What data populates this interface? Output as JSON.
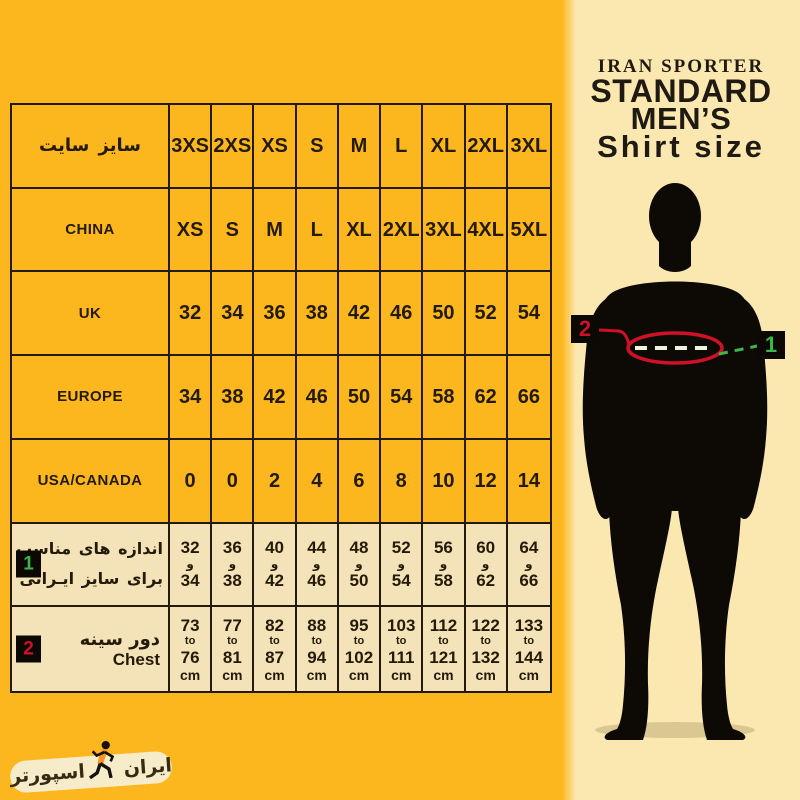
{
  "header": {
    "brand": "IRAN SPORTER",
    "title_line1": "STANDARD",
    "title_line2": "MEN’S",
    "title_line3": "Shirt size"
  },
  "figure": {
    "chest_marker": "2",
    "size_marker": "1"
  },
  "logo": {
    "word_iran": "ایران",
    "word_sporter": "اسپورتر"
  },
  "colors": {
    "background_yellow": "#fcb71e",
    "panel_cream": "#fbe8b1",
    "row_cream": "#f4e3b8",
    "badge_green": "#3db54d",
    "badge_red": "#cf1126",
    "line_red": "#cf1126",
    "ink": "#241a08"
  },
  "table": {
    "rows": [
      {
        "label": "سایز سایت",
        "label_lang": "fa",
        "cream": false,
        "values": [
          "3XS",
          "2XS",
          "XS",
          "S",
          "M",
          "L",
          "XL",
          "2XL",
          "3XL"
        ]
      },
      {
        "label": "CHINA",
        "label_lang": "en",
        "cream": false,
        "values": [
          "XS",
          "S",
          "M",
          "L",
          "XL",
          "2XL",
          "3XL",
          "4XL",
          "5XL"
        ]
      },
      {
        "label": "UK",
        "label_lang": "en",
        "cream": false,
        "values": [
          "32",
          "34",
          "36",
          "38",
          "42",
          "46",
          "50",
          "52",
          "54"
        ]
      },
      {
        "label": "EUROPE",
        "label_lang": "en",
        "cream": false,
        "values": [
          "34",
          "38",
          "42",
          "46",
          "50",
          "54",
          "58",
          "62",
          "66"
        ]
      },
      {
        "label": "USA/CANADA",
        "label_lang": "en",
        "cream": false,
        "values": [
          "0",
          "0",
          "2",
          "4",
          "6",
          "8",
          "10",
          "12",
          "14"
        ]
      },
      {
        "label": "اندازه های مناسب",
        "label2": "برای سایز ایـرانی",
        "label_lang": "fa",
        "label2_lang": "fa",
        "badge": "1",
        "badge_color": "green",
        "cream": true,
        "values": [
          {
            "a": "32",
            "w": "و",
            "b": "34"
          },
          {
            "a": "36",
            "w": "و",
            "b": "38"
          },
          {
            "a": "40",
            "w": "و",
            "b": "42"
          },
          {
            "a": "44",
            "w": "و",
            "b": "46"
          },
          {
            "a": "48",
            "w": "و",
            "b": "50"
          },
          {
            "a": "52",
            "w": "و",
            "b": "54"
          },
          {
            "a": "56",
            "w": "و",
            "b": "58"
          },
          {
            "a": "60",
            "w": "و",
            "b": "62"
          },
          {
            "a": "64",
            "w": "و",
            "b": "66"
          }
        ]
      },
      {
        "label": "دور سینه",
        "label2": "Chest",
        "label_lang": "fa",
        "label2_lang": "en",
        "badge": "2",
        "badge_color": "red",
        "cream": true,
        "values": [
          {
            "a": "73",
            "w": "to",
            "b": "76",
            "u": "cm"
          },
          {
            "a": "77",
            "w": "to",
            "b": "81",
            "u": "cm"
          },
          {
            "a": "82",
            "w": "to",
            "b": "87",
            "u": "cm"
          },
          {
            "a": "88",
            "w": "to",
            "b": "94",
            "u": "cm"
          },
          {
            "a": "95",
            "w": "to",
            "b": "102",
            "u": "cm"
          },
          {
            "a": "103",
            "w": "to",
            "b": "111",
            "u": "cm"
          },
          {
            "a": "112",
            "w": "to",
            "b": "121",
            "u": "cm"
          },
          {
            "a": "122",
            "w": "to",
            "b": "132",
            "u": "cm"
          },
          {
            "a": "133",
            "w": "to",
            "b": "144",
            "u": "cm"
          }
        ]
      }
    ]
  },
  "chart_data": {
    "type": "table",
    "title": "IRAN SPORTER STANDARD MEN'S Shirt size",
    "row_headers": [
      "سایز سایت",
      "CHINA",
      "UK",
      "EUROPE",
      "USA/CANADA",
      "اندازه های مناسب برای سایز ایـرانی",
      "دور سینه Chest"
    ],
    "rows": [
      [
        "3XS",
        "2XS",
        "XS",
        "S",
        "M",
        "L",
        "XL",
        "2XL",
        "3XL"
      ],
      [
        "XS",
        "S",
        "M",
        "L",
        "XL",
        "2XL",
        "3XL",
        "4XL",
        "5XL"
      ],
      [
        "32",
        "34",
        "36",
        "38",
        "42",
        "46",
        "50",
        "52",
        "54"
      ],
      [
        "34",
        "38",
        "42",
        "46",
        "50",
        "54",
        "58",
        "62",
        "66"
      ],
      [
        "0",
        "0",
        "2",
        "4",
        "6",
        "8",
        "10",
        "12",
        "14"
      ],
      [
        "32 و 34",
        "36 و 38",
        "40 و 42",
        "44 و 46",
        "48 و 50",
        "52 و 54",
        "56 و 58",
        "60 و 62",
        "64 و 66"
      ],
      [
        "73 to 76 cm",
        "77 to 81 cm",
        "82 to 87 cm",
        "88 to 94 cm",
        "95 to 102 cm",
        "103 to 111 cm",
        "112 to 121 cm",
        "122 to 132 cm",
        "133 to 144 cm"
      ]
    ],
    "annotations": [
      "1 = matching sizes for Iranian size",
      "2 = chest circumference"
    ]
  }
}
